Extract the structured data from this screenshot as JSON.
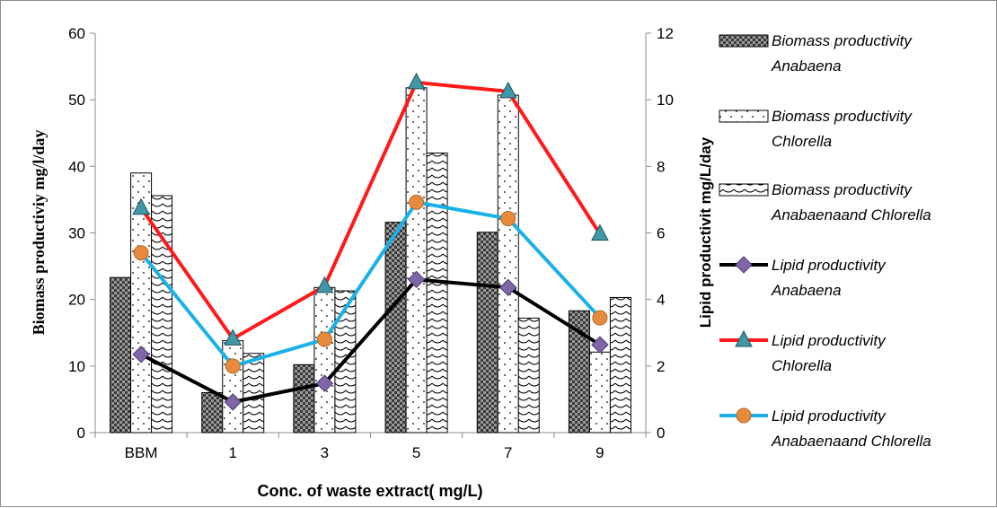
{
  "chart_data": {
    "type": "bar",
    "categories": [
      "BBM",
      "1",
      "3",
      "5",
      "7",
      "9"
    ],
    "xlabel": "Conc. of waste extract( mg/L)",
    "ylabel": "Biomass productiviy mg/l/day",
    "y2label": "Lipid productivit mg/L/day",
    "ylim": [
      0,
      60
    ],
    "y2lim": [
      0,
      12
    ],
    "yticks": [
      0,
      10,
      20,
      30,
      40,
      50,
      60
    ],
    "y2ticks": [
      0,
      2,
      4,
      6,
      8,
      10,
      12
    ],
    "grid": false,
    "legend": "right",
    "bar_series": [
      {
        "name_line1": "Biomass productivity",
        "name_line2": "Anabaena",
        "pattern": "dark-checker",
        "values": [
          23.3,
          6.0,
          10.2,
          31.6,
          30.1,
          18.3
        ]
      },
      {
        "name_line1": "Biomass productivity",
        "name_line2": "Chlorella",
        "pattern": "dots",
        "values": [
          39.0,
          13.8,
          21.8,
          51.8,
          50.7,
          12.1
        ]
      },
      {
        "name_line1": "Biomass productivity",
        "name_line2": "Anabaenaand Chlorella",
        "pattern": "wave",
        "values": [
          35.6,
          11.9,
          21.3,
          42.0,
          17.2,
          20.3
        ]
      }
    ],
    "line_series": [
      {
        "name_line1": "Lipid productivity",
        "name_line2": "Anabaena",
        "color": "#000000",
        "marker": "diamond",
        "marker_color": "#7f66a8",
        "values": [
          2.35,
          0.92,
          1.48,
          4.6,
          4.36,
          2.64
        ]
      },
      {
        "name_line1": "Lipid productivity",
        "name_line2": "Chlorella",
        "color": "#ff1a1a",
        "marker": "triangle",
        "marker_color": "#3f98a8",
        "values": [
          6.75,
          2.82,
          4.4,
          10.52,
          10.25,
          5.97
        ]
      },
      {
        "name_line1": "Lipid productivity",
        "name_line2": "Anabaenaand Chlorella",
        "color": "#1ab2e6",
        "marker": "circle",
        "marker_color": "#e88a3c",
        "values": [
          5.4,
          2.0,
          2.8,
          6.92,
          6.43,
          3.45
        ]
      }
    ]
  }
}
